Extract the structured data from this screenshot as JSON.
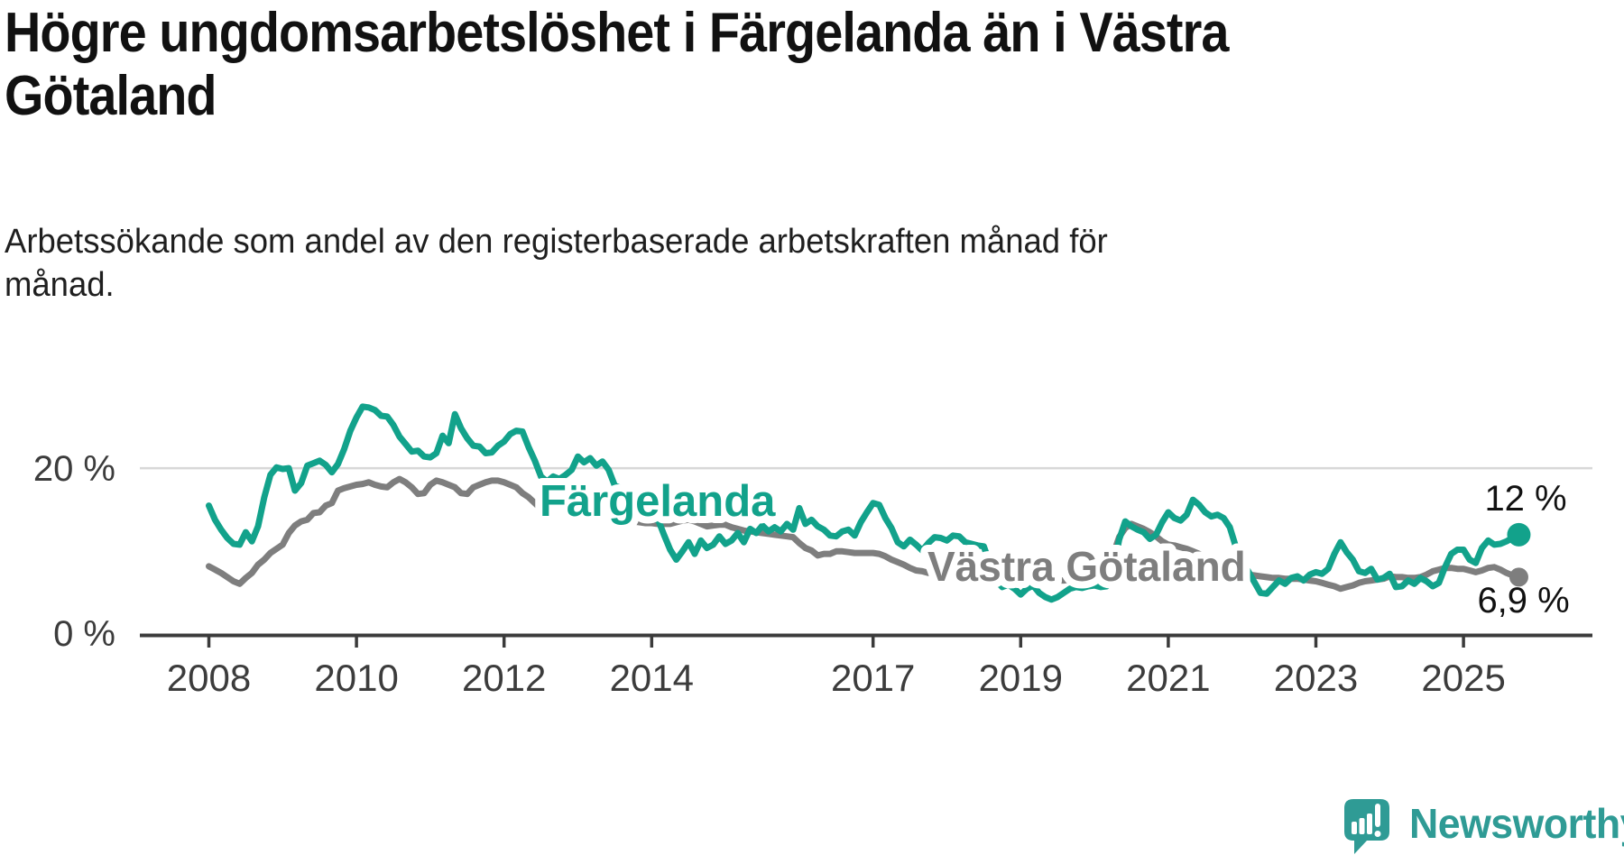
{
  "header": {
    "title_lines": [
      "Högre ungdomsarbetslöshet i Färgelanda än i Västra",
      "Götaland"
    ],
    "subtitle_lines": [
      "Arbetssökande som andel av den registerbaserade arbetskraften månad för",
      "månad."
    ]
  },
  "chart_data": {
    "type": "line",
    "unit": "percent",
    "frequency": "monthly",
    "x_start": "2008-01",
    "x_end": "2025-10",
    "ylim": [
      0,
      29
    ],
    "grid": "horizontal gridline at 20% only, baseline axis at 0%",
    "legend_position": "inline labels on lines",
    "x_tick_years": [
      "2008",
      "2010",
      "2012",
      "2014",
      "2017",
      "2019",
      "2021",
      "2023",
      "2025"
    ],
    "y_ticks": [
      {
        "value": 0,
        "label": "0 %"
      },
      {
        "value": 20,
        "label": "20 %"
      }
    ],
    "series": [
      {
        "name": "Västra Götaland",
        "color": "#7E7E7E",
        "end_label": "6,9 %",
        "latest_value": 6.9,
        "values": [
          8.2,
          7.8,
          7.4,
          6.9,
          6.4,
          6.1,
          6.8,
          7.4,
          8.4,
          9.0,
          9.8,
          10.3,
          10.8,
          12.2,
          13.1,
          13.6,
          13.8,
          14.6,
          14.7,
          15.5,
          15.8,
          17.3,
          17.6,
          17.8,
          18.0,
          18.1,
          18.3,
          18.0,
          17.8,
          17.7,
          18.3,
          18.7,
          18.3,
          17.7,
          16.9,
          17.0,
          18.0,
          18.5,
          18.3,
          18.0,
          17.7,
          17.0,
          16.9,
          17.7,
          18.0,
          18.3,
          18.5,
          18.5,
          18.3,
          18.0,
          17.7,
          17.0,
          16.5,
          15.8,
          15.1,
          14.8,
          15.8,
          15.5,
          15.2,
          15.0,
          14.9,
          14.7,
          14.6,
          14.4,
          14.3,
          14.1,
          14.0,
          13.8,
          13.7,
          13.6,
          13.5,
          13.4,
          13.4,
          13.3,
          13.3,
          13.3,
          13.5,
          13.7,
          13.8,
          13.6,
          13.3,
          13.0,
          13.1,
          13.2,
          13.2,
          12.9,
          12.7,
          12.5,
          12.4,
          12.3,
          12.2,
          12.1,
          12.0,
          11.9,
          11.8,
          11.7,
          11.0,
          10.4,
          10.1,
          9.5,
          9.7,
          9.7,
          10.0,
          10.0,
          9.9,
          9.8,
          9.8,
          9.8,
          9.8,
          9.7,
          9.4,
          9.0,
          8.7,
          8.4,
          8.0,
          7.7,
          7.6,
          7.4,
          7.5,
          7.6,
          7.7,
          7.8,
          7.9,
          8.1,
          8.0,
          7.8,
          7.6,
          7.4,
          7.2,
          7.1,
          7.0,
          6.9,
          6.8,
          6.7,
          6.6,
          6.5,
          6.4,
          6.4,
          6.5,
          6.5,
          6.6,
          6.7,
          6.8,
          6.9,
          7.0,
          7.1,
          7.5,
          9.5,
          11.7,
          12.8,
          13.3,
          13.0,
          12.7,
          12.3,
          11.8,
          11.2,
          10.8,
          10.7,
          10.5,
          10.3,
          10.0,
          9.7,
          9.4,
          9.0,
          8.7,
          8.4,
          8.1,
          7.7,
          7.3,
          7.2,
          7.1,
          7.0,
          6.9,
          6.8,
          6.8,
          6.7,
          6.7,
          6.7,
          6.6,
          6.5,
          6.4,
          6.2,
          6.0,
          5.8,
          5.5,
          5.7,
          5.9,
          6.2,
          6.4,
          6.5,
          6.6,
          6.7,
          7.0,
          6.9,
          6.9,
          6.8,
          6.8,
          6.9,
          7.2,
          7.6,
          7.8,
          8.0,
          8.0,
          7.9,
          7.9,
          7.7,
          7.5,
          7.7,
          8.0,
          8.1,
          7.8,
          7.4,
          7.1,
          6.9
        ]
      },
      {
        "name": "Färgelanda",
        "color": "#12A28B",
        "end_label": "12 %",
        "latest_value": 12,
        "values": [
          15.5,
          13.8,
          12.6,
          11.6,
          10.9,
          10.8,
          12.3,
          11.2,
          13.0,
          16.5,
          19.2,
          20.1,
          19.9,
          20.0,
          17.3,
          18.2,
          20.3,
          20.6,
          20.9,
          20.4,
          19.5,
          20.5,
          22.3,
          24.5,
          26.1,
          27.4,
          27.3,
          27.0,
          26.3,
          26.2,
          25.2,
          23.8,
          22.9,
          22.0,
          22.1,
          21.4,
          21.3,
          21.8,
          23.9,
          23.0,
          26.5,
          24.8,
          23.6,
          22.7,
          22.6,
          21.8,
          21.9,
          22.7,
          23.2,
          24.1,
          24.5,
          24.4,
          22.5,
          20.9,
          19.0,
          18.4,
          19.0,
          18.7,
          19.2,
          19.8,
          21.4,
          20.7,
          21.2,
          20.3,
          20.8,
          19.8,
          17.9,
          17.6,
          16.5,
          15.5,
          14.8,
          14.2,
          13.8,
          13.9,
          12.0,
          10.2,
          9.0,
          10.0,
          11.1,
          9.7,
          11.3,
          10.4,
          10.8,
          11.8,
          10.9,
          11.3,
          12.2,
          11.1,
          12.7,
          12.2,
          13.1,
          12.4,
          12.9,
          12.4,
          13.3,
          12.6,
          15.2,
          13.3,
          13.8,
          13.0,
          12.6,
          11.9,
          11.8,
          12.4,
          12.6,
          11.9,
          13.5,
          14.7,
          15.8,
          15.6,
          14.0,
          12.8,
          11.1,
          10.6,
          11.4,
          10.8,
          10.1,
          11.0,
          11.7,
          11.6,
          11.3,
          11.9,
          11.8,
          11.1,
          10.9,
          10.7,
          10.6,
          8.5,
          6.5,
          5.7,
          6.0,
          5.5,
          4.8,
          5.5,
          5.9,
          5.0,
          4.5,
          4.2,
          4.5,
          5.0,
          5.5,
          5.7,
          5.6,
          5.8,
          5.9,
          5.7,
          5.8,
          7.5,
          11.4,
          13.6,
          13.0,
          12.6,
          12.3,
          11.5,
          12.0,
          13.5,
          14.7,
          14.0,
          13.7,
          14.4,
          16.2,
          15.6,
          14.7,
          14.2,
          14.4,
          14.0,
          12.9,
          10.5,
          9.0,
          7.6,
          6.3,
          5.0,
          4.9,
          5.7,
          6.5,
          6.1,
          6.8,
          7.0,
          6.5,
          7.2,
          7.5,
          7.3,
          7.9,
          9.7,
          11.1,
          9.9,
          9.0,
          7.6,
          7.4,
          7.9,
          6.6,
          6.8,
          7.3,
          5.7,
          5.8,
          6.5,
          6.1,
          6.8,
          6.4,
          5.8,
          6.2,
          8.1,
          9.7,
          10.2,
          10.2,
          9.0,
          8.6,
          10.4,
          11.3,
          10.8,
          10.9,
          11.2,
          11.6,
          12.0
        ]
      }
    ]
  },
  "branding": {
    "logo_text": "Newsworthy",
    "logo_color": "#2F9B95",
    "logo_icon": "speech-bubble-bar-chart"
  },
  "colors": {
    "background": "#FFFFFF",
    "title_text": "#111111",
    "subtitle_text": "#1F1F1F",
    "axis_line": "#3B3B3B",
    "axis_labels": "#3C3C3C",
    "gridline": "#D8D8D8",
    "end_value_labels": "#111111",
    "fargelanda_teal": "#12A28B",
    "vastra_gotaland_gray": "#7E7E7E"
  }
}
